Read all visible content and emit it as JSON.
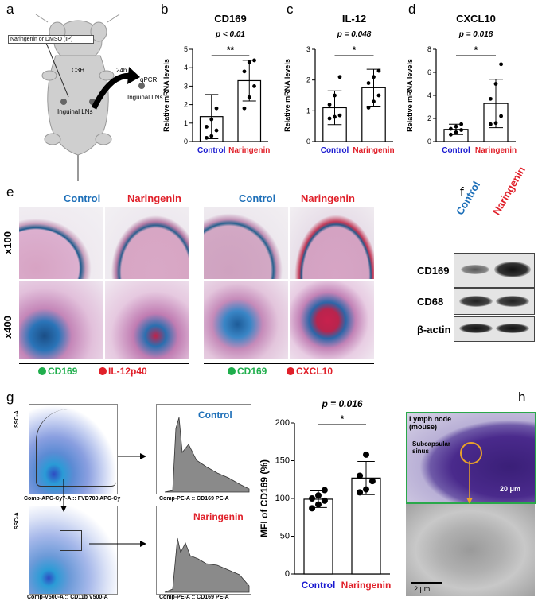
{
  "panels": {
    "a": {
      "label": "a",
      "treatment": "Naringenin or DMSO (IP)",
      "mouse": "C3H",
      "time": "24h",
      "inguinal_left": "Inguinal LNs",
      "qpcr": "qPCR",
      "inguinal_right": "Inguinal LNs"
    },
    "b": {
      "label": "b"
    },
    "c": {
      "label": "c"
    },
    "d": {
      "label": "d"
    },
    "e": {
      "label": "e",
      "col_control_1": "Control",
      "col_naringenin_1": "Naringenin",
      "col_control_2": "Control",
      "col_naringenin_2": "Naringenin",
      "row_x100": "x100",
      "row_x400": "x400",
      "legend1_green": "CD169",
      "legend1_red": "IL-12p40",
      "legend2_green": "CD169",
      "legend2_red": "CXCL10"
    },
    "f": {
      "label": "f",
      "lane_control": "Control",
      "lane_naringenin": "Naringenin",
      "rows": [
        "CD169",
        "CD68",
        "β-actin"
      ]
    },
    "g": {
      "label": "g",
      "ssc1": "SSC-A",
      "ssc2": "SSC-A",
      "gate1": "FVD780 APC-Cy",
      "xaxis1": "Comp-APC-Cy7-A :: FVD780 APC-Cy",
      "xaxis2": "Comp-V500-A :: CD11b V500-A",
      "gate2": "CD11b",
      "hist_control": "Control",
      "hist_naringenin": "Naringenin",
      "hist_xaxis1": "Comp-PE-A :: CD169 PE-A",
      "hist_xaxis2": "Comp-PE-A :: CD169 PE-A"
    },
    "h": {
      "label": "h",
      "lymph_node": "Lymph node\n(mouse)",
      "subcapsular": "Subcapsular\nsinus",
      "scale_top": "20 μm",
      "scale_bottom": "2 μm"
    }
  },
  "chart_data": [
    {
      "type": "bar",
      "id": "b",
      "title": "CD169",
      "pvalue": "p < 0.01",
      "sig": "**",
      "ylabel": "Relative mRNA levels",
      "ylim": [
        0,
        5
      ],
      "yticks": [
        0,
        1,
        2,
        3,
        4,
        5
      ],
      "categories": [
        "Control",
        "Naringenin"
      ],
      "values": [
        1.35,
        3.3
      ],
      "err": [
        1.2,
        1.1
      ],
      "points": [
        [
          0.2,
          0.3,
          0.6,
          0.8,
          1.2,
          1.8
        ],
        [
          1.8,
          2.4,
          3.0,
          3.8,
          4.3,
          4.4
        ]
      ]
    },
    {
      "type": "bar",
      "id": "c",
      "title": "IL-12",
      "pvalue": "p = 0.048",
      "sig": "*",
      "ylabel": "Relative mRNA levels",
      "ylim": [
        0,
        3
      ],
      "yticks": [
        0,
        1,
        2,
        3
      ],
      "categories": [
        "Control",
        "Naringenin"
      ],
      "values": [
        1.1,
        1.75
      ],
      "err": [
        0.55,
        0.6
      ],
      "points": [
        [
          0.75,
          0.8,
          0.85,
          1.2,
          1.5,
          2.1
        ],
        [
          1.1,
          1.3,
          1.5,
          1.9,
          2.1,
          2.3
        ]
      ]
    },
    {
      "type": "bar",
      "id": "d",
      "title": "CXCL10",
      "pvalue": "p = 0.018",
      "sig": "*",
      "ylabel": "Relative mRNA levels",
      "ylim": [
        0,
        8
      ],
      "yticks": [
        0,
        2,
        4,
        6,
        8
      ],
      "categories": [
        "Control",
        "Naringenin"
      ],
      "values": [
        1.05,
        3.3
      ],
      "err": [
        0.45,
        2.1
      ],
      "points": [
        [
          0.6,
          0.8,
          1.0,
          1.1,
          1.3,
          1.5
        ],
        [
          1.5,
          1.6,
          2.2,
          3.7,
          5.0,
          6.7
        ]
      ]
    },
    {
      "type": "bar",
      "id": "g",
      "title": "",
      "pvalue": "p = 0.016",
      "sig": "*",
      "ylabel": "MFI of CD169 (%)",
      "ylim": [
        0,
        200
      ],
      "yticks": [
        0,
        50,
        100,
        150,
        200
      ],
      "categories": [
        "Control",
        "Naringenin"
      ],
      "values": [
        99,
        127
      ],
      "err": [
        11,
        22
      ],
      "points": [
        [
          87,
          92,
          97,
          100,
          104,
          111
        ],
        [
          108,
          112,
          123,
          130,
          158
        ]
      ]
    }
  ],
  "colors": {
    "control": "#1a1ad0",
    "naringenin": "#e0202a",
    "histo_control": "#1d6fb8",
    "green_legend": "#1fae4c",
    "h_border": "#2aa84a"
  }
}
